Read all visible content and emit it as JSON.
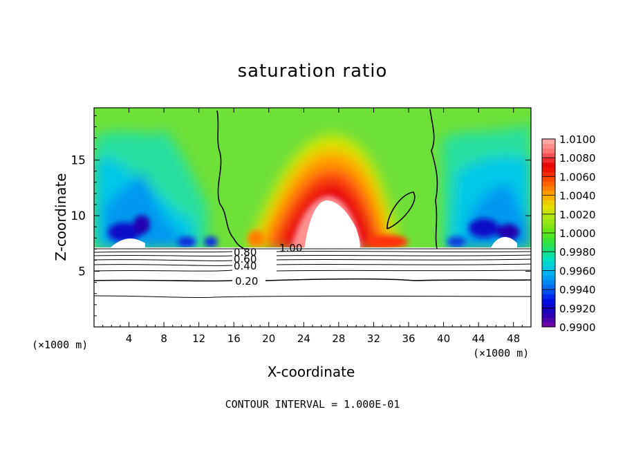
{
  "chart_data": {
    "type": "heatmap",
    "title": "saturation ratio",
    "xlabel": "X-coordinate",
    "ylabel": "Z-coordinate",
    "x_unit_label": "(×1000 m)",
    "z_unit_label": "(×1000 m)",
    "xlim": [
      0,
      50
    ],
    "ylim": [
      0,
      19.7
    ],
    "x_ticks": [
      4,
      8,
      12,
      16,
      20,
      24,
      28,
      32,
      36,
      40,
      44,
      48
    ],
    "y_ticks": [
      5,
      10,
      15
    ],
    "colorbar": {
      "levels": [
        "0.9900",
        "0.9920",
        "0.9940",
        "0.9960",
        "0.9980",
        "1.0000",
        "1.0020",
        "1.0040",
        "1.0060",
        "1.0080",
        "1.0100"
      ],
      "min": 0.99,
      "max": 1.01
    },
    "contour_labels": [
      "1.00",
      "0.80",
      "0.60",
      "0.40",
      "0.20"
    ],
    "contour_interval_text": "CONTOUR INTERVAL = 1.000E-01",
    "color_ramp": [
      "#7a0aa0",
      "#2200b4",
      "#0010e6",
      "#0070f0",
      "#00b4f0",
      "#00e0c8",
      "#22e05a",
      "#5ae614",
      "#a0e614",
      "#e6e000",
      "#ff9a00",
      "#ff4a00",
      "#e60000",
      "#ff6a6a",
      "#ffb4b4"
    ]
  }
}
